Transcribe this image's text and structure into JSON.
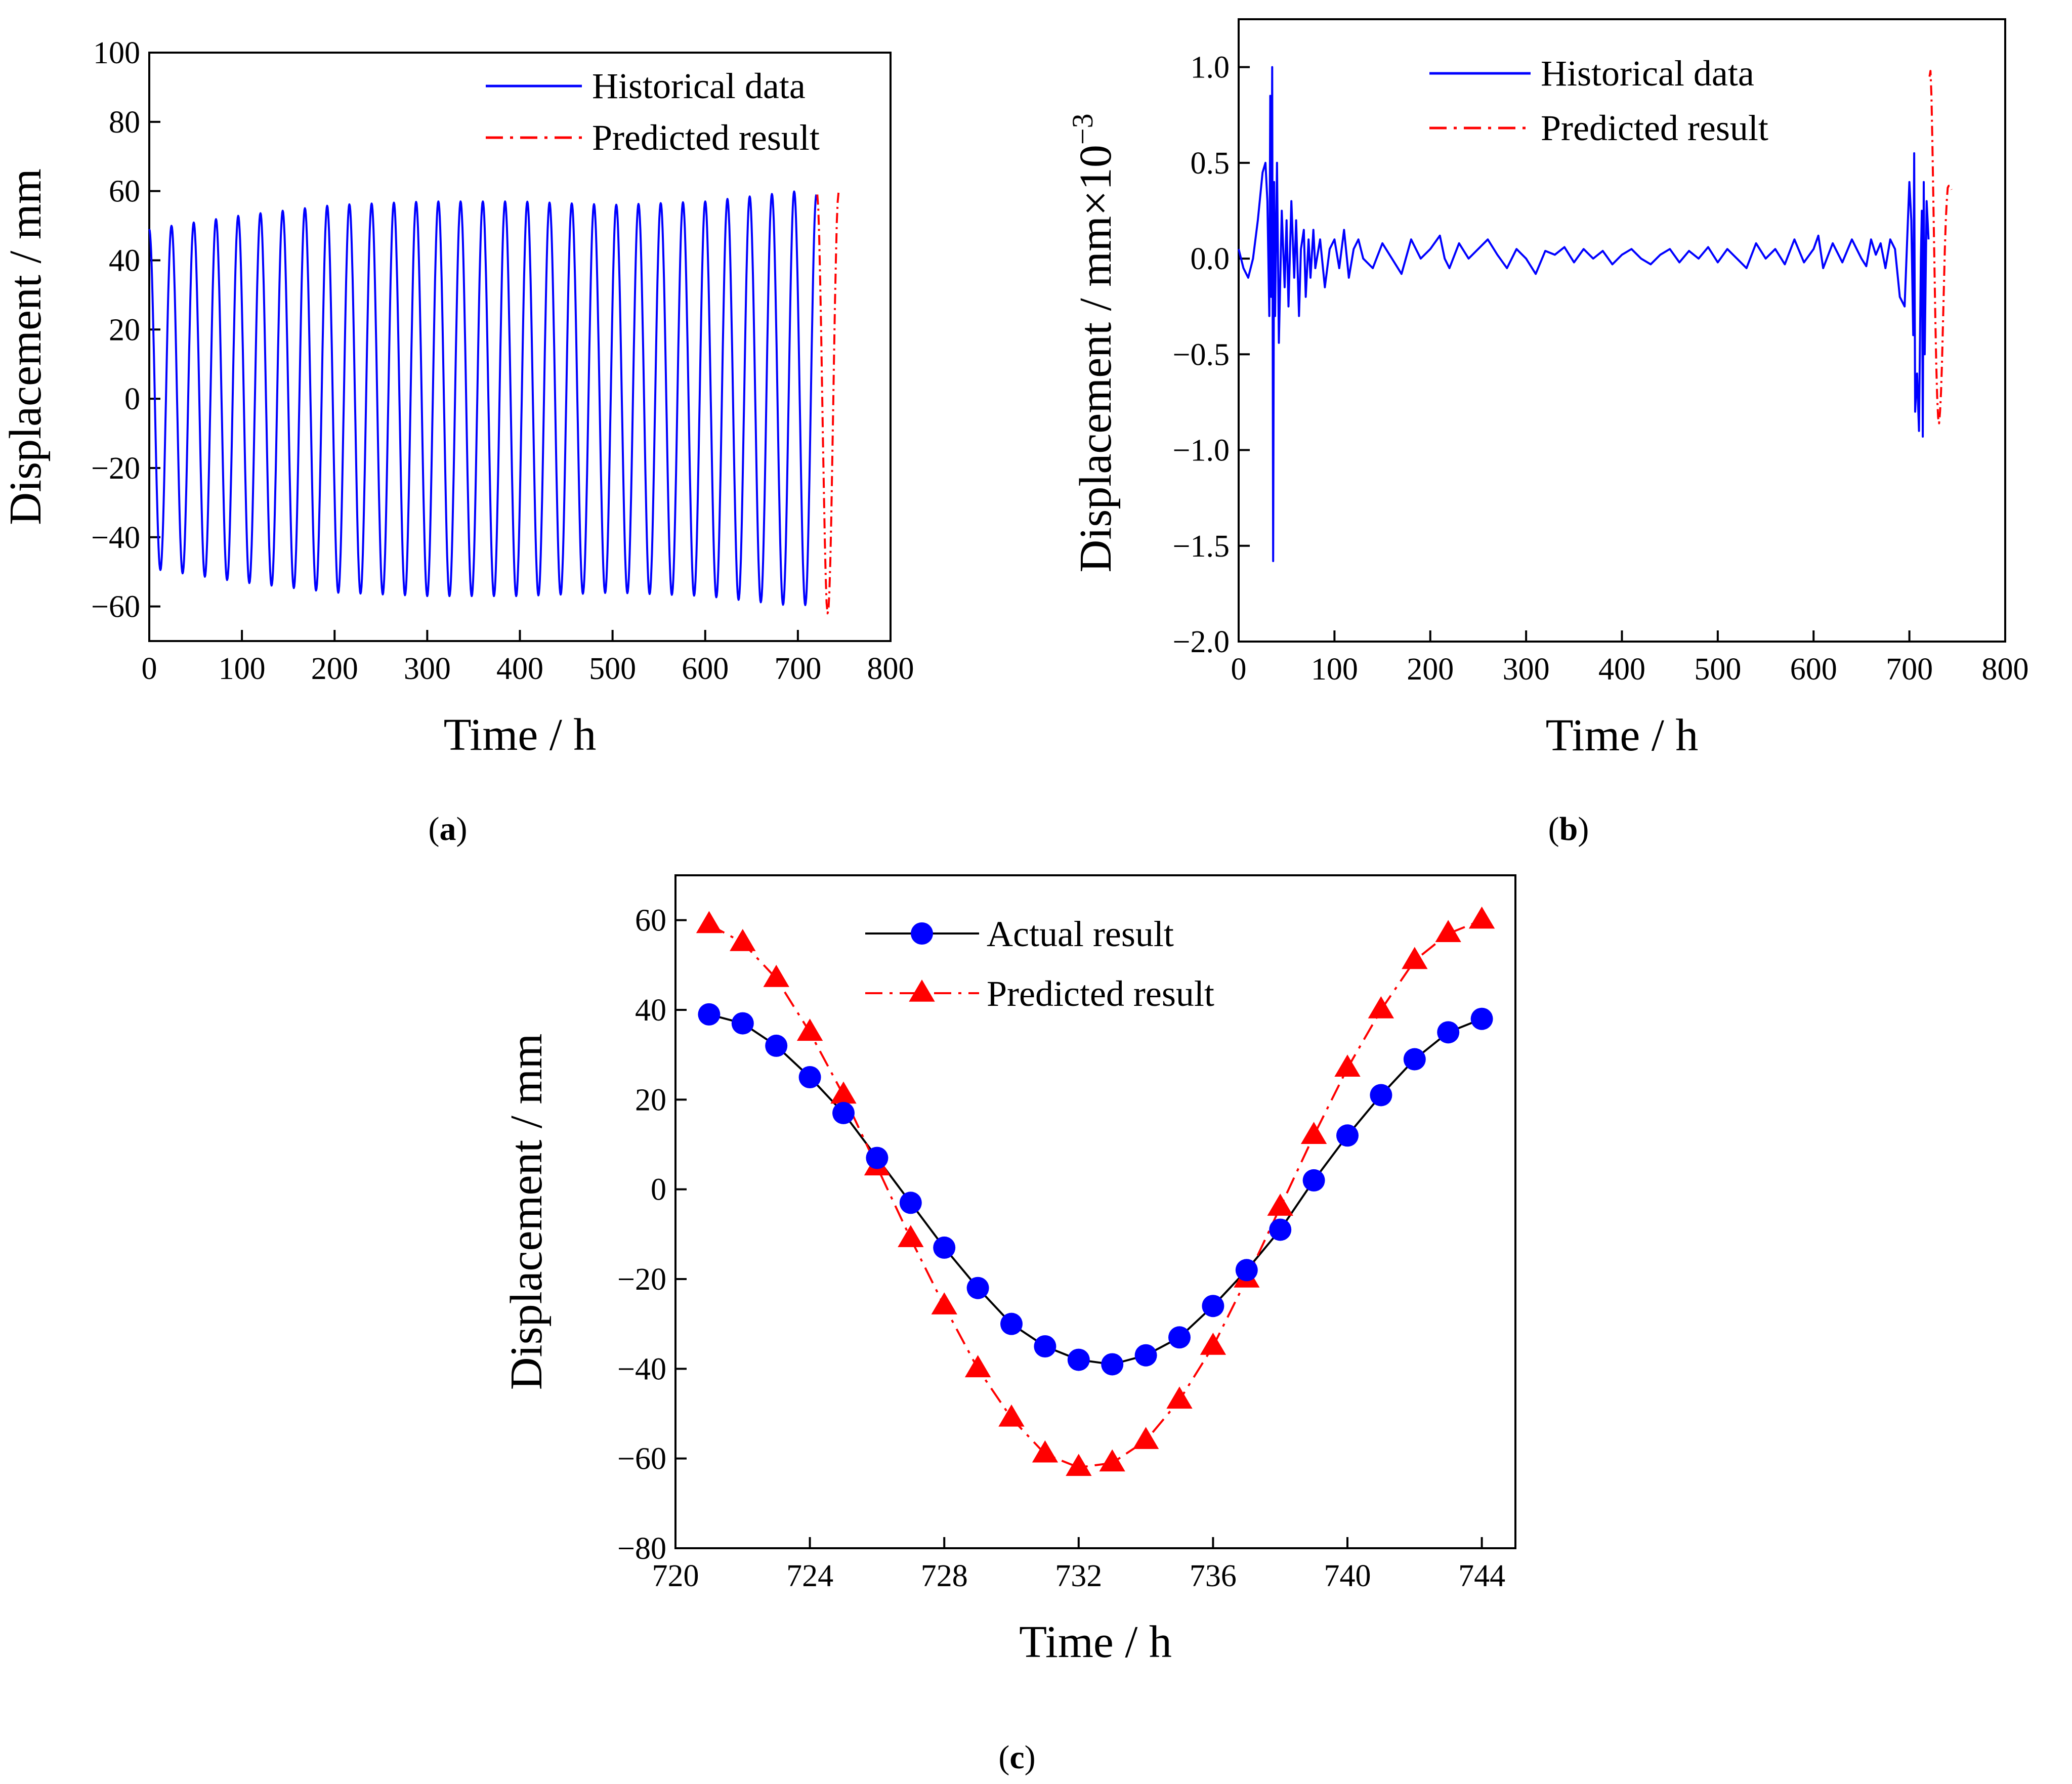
{
  "figure": {
    "panels": [
      {
        "id": "a",
        "label_open": "(",
        "label_letter": "a",
        "label_close": ")"
      },
      {
        "id": "b",
        "label_open": "(",
        "label_letter": "b",
        "label_close": ")"
      },
      {
        "id": "c",
        "label_open": "(",
        "label_letter": "c",
        "label_close": ")"
      }
    ]
  },
  "colors": {
    "historical": "#0000ff",
    "predicted": "#ff0000",
    "actual_line": "#000000",
    "actual_marker": "#0000ff",
    "axis": "#000000"
  },
  "chart_data": [
    {
      "id": "a",
      "type": "line",
      "xlabel": "Time / h",
      "ylabel": "Displacement / mm",
      "xlim": [
        0,
        800
      ],
      "ylim": [
        -70,
        100
      ],
      "xticks": [
        0,
        100,
        200,
        300,
        400,
        500,
        600,
        700,
        800
      ],
      "xtick_labels": [
        "0",
        "100",
        "200",
        "300",
        "400",
        "500",
        "600",
        "700",
        "800"
      ],
      "yticks": [
        -60,
        -40,
        -20,
        0,
        20,
        40,
        60,
        80,
        100
      ],
      "ytick_labels": [
        "−60",
        "−40",
        "−20",
        "0",
        "20",
        "40",
        "60",
        "80",
        "100"
      ],
      "legend_position": "top-right",
      "grid": false,
      "series": [
        {
          "name": "Historical data",
          "style": "solid",
          "color": "#0000ff",
          "description_points": {
            "t_start": 0,
            "t_end": 720,
            "period_h": 24,
            "amplitude_by_time": [
              [
                0,
                49
              ],
              [
                100,
                53
              ],
              [
                200,
                56
              ],
              [
                300,
                57
              ],
              [
                400,
                57
              ],
              [
                500,
                56
              ],
              [
                600,
                57
              ],
              [
                700,
                60
              ],
              [
                720,
                59
              ]
            ],
            "phase_peak_at_h": 0
          }
        },
        {
          "name": "Predicted result",
          "style": "dash-dot",
          "color": "#ff0000",
          "x": [
            721,
            722,
            723,
            724,
            725,
            726,
            727,
            728,
            729,
            730,
            731,
            732,
            733,
            734,
            735,
            736,
            737,
            738,
            739,
            740,
            741,
            742,
            743,
            744
          ],
          "y": [
            59,
            55,
            47,
            35,
            21,
            5,
            -11,
            -26,
            -40,
            -51,
            -59,
            -62,
            -61,
            -56,
            -47,
            -35,
            -20,
            -4,
            12,
            27,
            40,
            51,
            57,
            60
          ]
        }
      ]
    },
    {
      "id": "b",
      "type": "line",
      "xlabel": "Time / h",
      "ylabel_main": "Displacement / mm×10",
      "ylabel_exponent": "−3",
      "xlim": [
        0,
        800
      ],
      "ylim": [
        -2.0,
        1.25
      ],
      "xticks": [
        0,
        100,
        200,
        300,
        400,
        500,
        600,
        700,
        800
      ],
      "xtick_labels": [
        "0",
        "100",
        "200",
        "300",
        "400",
        "500",
        "600",
        "700",
        "800"
      ],
      "yticks": [
        -2.0,
        -1.5,
        -1.0,
        -0.5,
        0.0,
        0.5,
        1.0
      ],
      "ytick_labels": [
        "−2.0",
        "−1.5",
        "−1.0",
        "−0.5",
        "0.0",
        "0.5",
        "1.0"
      ],
      "legend_position": "top-right",
      "grid": false,
      "series": [
        {
          "name": "Historical data",
          "style": "solid",
          "color": "#0000ff",
          "x": [
            0,
            5,
            10,
            15,
            20,
            25,
            28,
            30,
            32,
            33,
            34,
            35,
            36,
            37,
            38,
            40,
            42,
            45,
            48,
            50,
            52,
            55,
            58,
            60,
            63,
            65,
            68,
            70,
            73,
            75,
            78,
            80,
            85,
            90,
            95,
            100,
            105,
            110,
            115,
            120,
            125,
            130,
            140,
            150,
            160,
            170,
            180,
            190,
            200,
            210,
            215,
            220,
            230,
            240,
            250,
            260,
            270,
            280,
            290,
            300,
            310,
            320,
            330,
            340,
            350,
            360,
            370,
            380,
            390,
            400,
            410,
            420,
            430,
            440,
            450,
            460,
            470,
            480,
            490,
            500,
            510,
            520,
            530,
            540,
            550,
            560,
            570,
            580,
            590,
            600,
            605,
            610,
            620,
            630,
            640,
            650,
            655,
            660,
            665,
            670,
            675,
            680,
            685,
            690,
            695,
            700,
            702,
            704,
            705,
            706,
            708,
            710,
            712,
            713,
            714,
            715,
            716,
            718,
            720
          ],
          "y": [
            0.05,
            -0.05,
            -0.1,
            0.0,
            0.2,
            0.45,
            0.5,
            0.3,
            -0.3,
            0.85,
            -0.2,
            1.0,
            -1.58,
            0.4,
            -0.3,
            0.5,
            -0.44,
            0.25,
            -0.15,
            0.2,
            -0.25,
            0.3,
            -0.1,
            0.2,
            -0.3,
            0.05,
            0.15,
            -0.2,
            0.1,
            -0.1,
            0.15,
            -0.05,
            0.1,
            -0.15,
            0.05,
            0.1,
            -0.05,
            0.15,
            -0.1,
            0.05,
            0.1,
            0.0,
            -0.05,
            0.08,
            0.0,
            -0.08,
            0.1,
            0.0,
            0.05,
            0.12,
            0.0,
            -0.05,
            0.08,
            0.0,
            0.05,
            0.1,
            0.02,
            -0.05,
            0.05,
            0.0,
            -0.08,
            0.04,
            0.02,
            0.06,
            -0.02,
            0.05,
            0.0,
            0.04,
            -0.03,
            0.02,
            0.05,
            0.0,
            -0.03,
            0.02,
            0.05,
            -0.02,
            0.04,
            0.0,
            0.06,
            -0.02,
            0.05,
            0.0,
            -0.05,
            0.08,
            0.0,
            0.05,
            -0.03,
            0.1,
            -0.02,
            0.05,
            0.12,
            -0.05,
            0.08,
            -0.02,
            0.1,
            0.0,
            -0.04,
            0.1,
            0.02,
            0.08,
            -0.05,
            0.1,
            0.05,
            -0.2,
            -0.25,
            0.4,
            0.2,
            -0.4,
            0.55,
            -0.8,
            -0.6,
            -0.9,
            0.0,
            0.25,
            -0.93,
            0.4,
            -0.5,
            0.3,
            0.1
          ]
        },
        {
          "name": "Predicted result",
          "style": "dash-dot",
          "color": "#ff0000",
          "x": [
            721,
            722,
            723,
            724,
            725,
            726,
            727,
            728,
            729,
            730,
            731,
            732,
            733,
            734,
            735,
            736,
            737,
            738,
            739,
            740,
            741,
            742,
            743,
            744
          ],
          "y": [
            0.95,
            0.98,
            0.85,
            0.6,
            0.3,
            0.0,
            -0.3,
            -0.55,
            -0.72,
            -0.83,
            -0.86,
            -0.8,
            -0.7,
            -0.55,
            -0.35,
            -0.15,
            0.05,
            0.2,
            0.3,
            0.37,
            0.38,
            0.38,
            0.37,
            0.36
          ]
        }
      ]
    },
    {
      "id": "c",
      "type": "line",
      "xlabel": "Time / h",
      "ylabel": "Displacement / mm",
      "xlim": [
        720,
        745
      ],
      "ylim": [
        -80,
        70
      ],
      "xticks": [
        720,
        724,
        728,
        732,
        736,
        740,
        744
      ],
      "xtick_labels": [
        "720",
        "724",
        "728",
        "732",
        "736",
        "740",
        "744"
      ],
      "yticks": [
        -80,
        -60,
        -40,
        -20,
        0,
        20,
        40,
        60
      ],
      "ytick_labels": [
        "−80",
        "−60",
        "−40",
        "−20",
        "0",
        "20",
        "40",
        "60"
      ],
      "legend_position": "top-center",
      "grid": false,
      "x": [
        721,
        722,
        723,
        724,
        725,
        726,
        727,
        728,
        729,
        730,
        731,
        732,
        733,
        734,
        735,
        736,
        737,
        738,
        739,
        740,
        741,
        742,
        743,
        744
      ],
      "series": [
        {
          "name": "Actual result",
          "style": "solid",
          "marker": "circle",
          "line_color": "#000000",
          "marker_color": "#0000ff",
          "values": [
            39,
            37,
            32,
            25,
            17,
            7,
            -3,
            -13,
            -22,
            -30,
            -35,
            -38,
            -39,
            -37,
            -33,
            -26,
            -18,
            -9,
            2,
            12,
            21,
            29,
            35,
            38
          ]
        },
        {
          "name": "Predicted result",
          "style": "dash-dot",
          "marker": "triangle",
          "line_color": "#ff0000",
          "marker_color": "#ff0000",
          "values": [
            59,
            55,
            47,
            35,
            21,
            5,
            -11,
            -26,
            -40,
            -51,
            -59,
            -62,
            -61,
            -56,
            -47,
            -35,
            -20,
            -4,
            12,
            27,
            40,
            51,
            57,
            60
          ]
        }
      ]
    }
  ]
}
